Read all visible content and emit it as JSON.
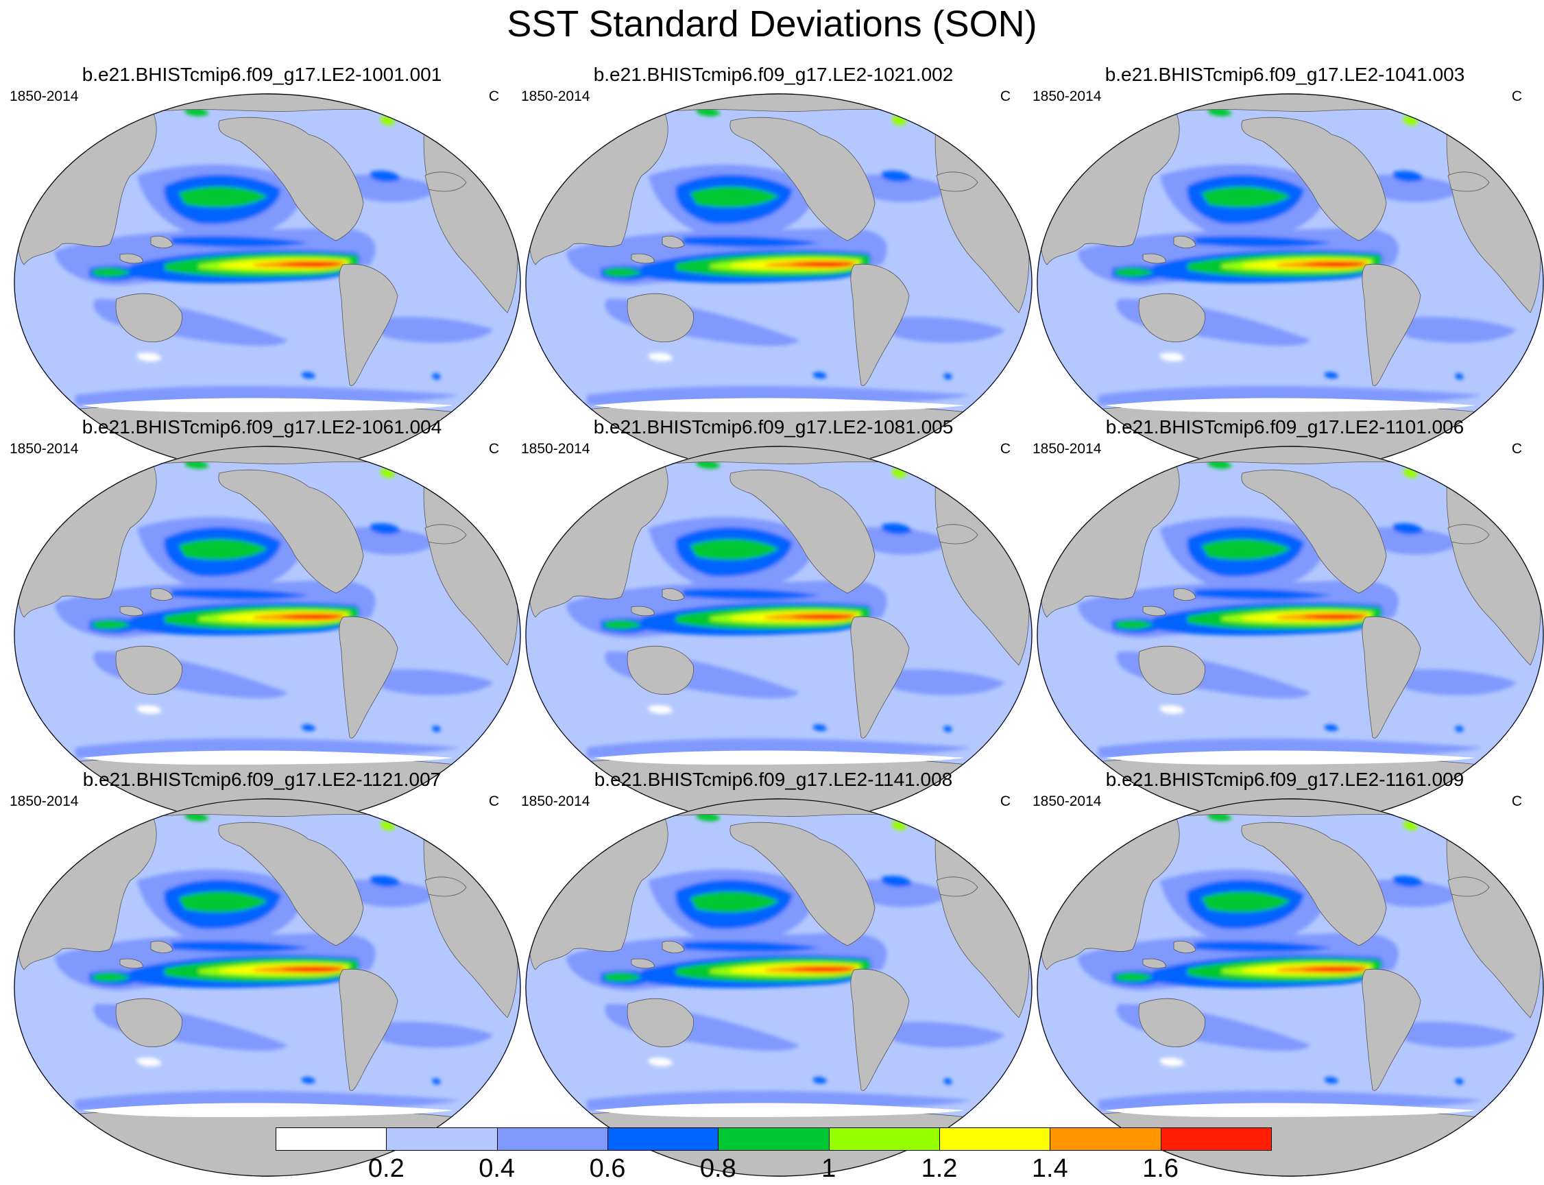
{
  "title": "SST Standard Deviations (SON)",
  "panels": [
    {
      "title": "b.e21.BHISTcmip6.f09_g17.LE2-1001.001",
      "left_label": "1850-2014",
      "right_label": "C"
    },
    {
      "title": "b.e21.BHISTcmip6.f09_g17.LE2-1021.002",
      "left_label": "1850-2014",
      "right_label": "C"
    },
    {
      "title": "b.e21.BHISTcmip6.f09_g17.LE2-1041.003",
      "left_label": "1850-2014",
      "right_label": "C"
    },
    {
      "title": "b.e21.BHISTcmip6.f09_g17.LE2-1061.004",
      "left_label": "1850-2014",
      "right_label": "C"
    },
    {
      "title": "b.e21.BHISTcmip6.f09_g17.LE2-1081.005",
      "left_label": "1850-2014",
      "right_label": "C"
    },
    {
      "title": "b.e21.BHISTcmip6.f09_g17.LE2-1101.006",
      "left_label": "1850-2014",
      "right_label": "C"
    },
    {
      "title": "b.e21.BHISTcmip6.f09_g17.LE2-1121.007",
      "left_label": "1850-2014",
      "right_label": "C"
    },
    {
      "title": "b.e21.BHISTcmip6.f09_g17.LE2-1141.008",
      "left_label": "1850-2014",
      "right_label": "C"
    },
    {
      "title": "b.e21.BHISTcmip6.f09_g17.LE2-1161.009",
      "left_label": "1850-2014",
      "right_label": "C"
    }
  ],
  "colorbar": {
    "colors": [
      "#ffffff",
      "#b4c8ff",
      "#8099ff",
      "#0064ff",
      "#00c832",
      "#96ff00",
      "#ffff00",
      "#ff9600",
      "#ff1e00"
    ],
    "labels": [
      "0.2",
      "0.4",
      "0.6",
      "0.8",
      "1",
      "1.2",
      "1.4",
      "1.6"
    ]
  },
  "map_colors": {
    "ocean_base": "#b4c8ff",
    "land": "#bebebe",
    "antarctica": "#bebebe",
    "sea_ice": "#ffffff"
  }
}
